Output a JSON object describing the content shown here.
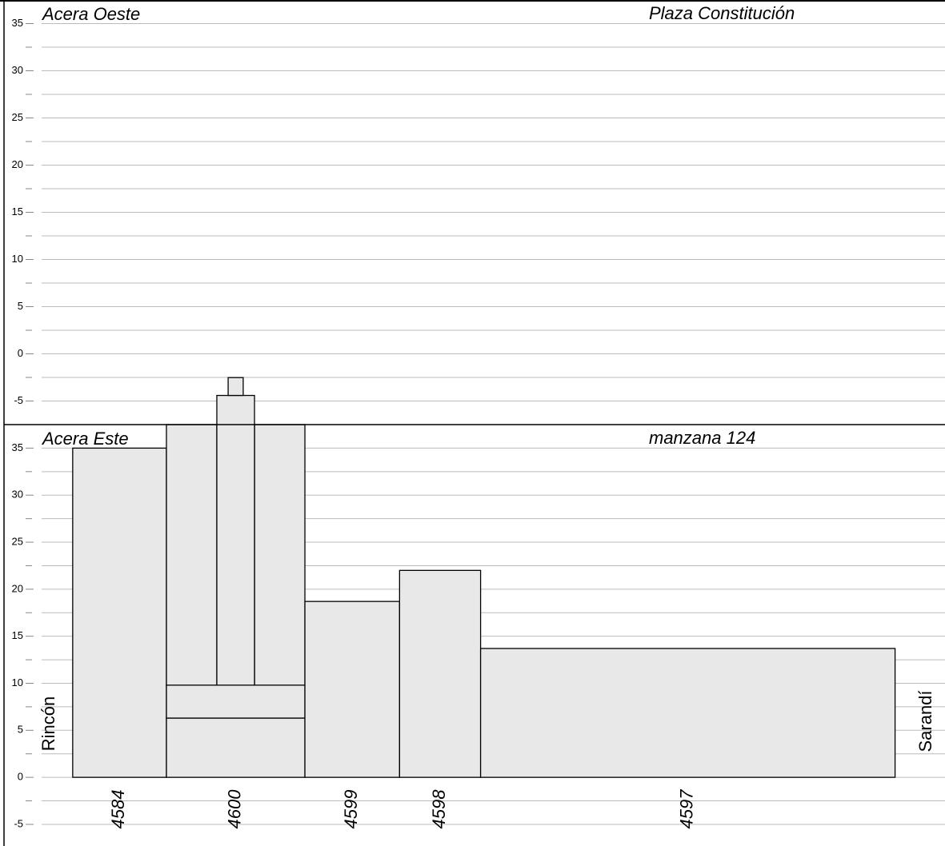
{
  "chart_data": [
    {
      "type": "elevation",
      "side_label": "Acera Oeste",
      "place_label": "Plaza Constitución",
      "xlim": [
        0,
        95.9
      ],
      "ylim": [
        -7.5,
        37.5
      ],
      "yticks": [
        35,
        30,
        25,
        20,
        15,
        10,
        5,
        0,
        -5
      ],
      "minor_yticks": [
        32.5,
        27.5,
        22.5,
        17.5,
        12.5,
        7.5,
        2.5,
        -2.5
      ],
      "grid": true,
      "buildings": []
    },
    {
      "type": "elevation",
      "side_label": "Acera Este",
      "place_label": "manzana 124",
      "left_label": "Rincón",
      "right_label": "Sarandí",
      "xlim": [
        0,
        95.9
      ],
      "ylim": [
        -7.3,
        37.5
      ],
      "yticks": [
        35,
        30,
        25,
        20,
        15,
        10,
        5,
        0,
        -5
      ],
      "minor_yticks": [
        32.5,
        27.5,
        22.5,
        17.5,
        12.5,
        7.5,
        2.5,
        -2.5
      ],
      "grid": true,
      "color": "#e8e8e8",
      "buildings": [
        {
          "name": "4584",
          "parts": [
            {
              "x": [
                3.3,
                13.25
              ],
              "y": [
                0,
                35
              ]
            }
          ]
        },
        {
          "name": "4600",
          "parts": [
            {
              "x": [
                13.25,
                27.95
              ],
              "y": [
                0,
                6.3
              ]
            },
            {
              "x": [
                13.25,
                27.95
              ],
              "y": [
                6.3,
                9.8
              ]
            },
            {
              "x": [
                13.25,
                18.6
              ],
              "y": [
                9.8,
                37.5
              ]
            },
            {
              "x": [
                22.6,
                27.95
              ],
              "y": [
                9.8,
                37.5
              ]
            },
            {
              "x": [
                18.6,
                22.6
              ],
              "y": [
                9.8,
                40.6
              ]
            },
            {
              "x": [
                19.8,
                21.4
              ],
              "y": [
                40.6,
                42.5
              ]
            }
          ]
        },
        {
          "name": "4599",
          "parts": [
            {
              "x": [
                27.95,
                38.0
              ],
              "y": [
                0,
                18.7
              ]
            }
          ]
        },
        {
          "name": "4598",
          "parts": [
            {
              "x": [
                38.0,
                46.6
              ],
              "y": [
                0,
                22
              ]
            }
          ]
        },
        {
          "name": "4597",
          "parts": [
            {
              "x": [
                46.6,
                90.6
              ],
              "y": [
                0,
                13.7
              ]
            }
          ]
        }
      ]
    }
  ]
}
